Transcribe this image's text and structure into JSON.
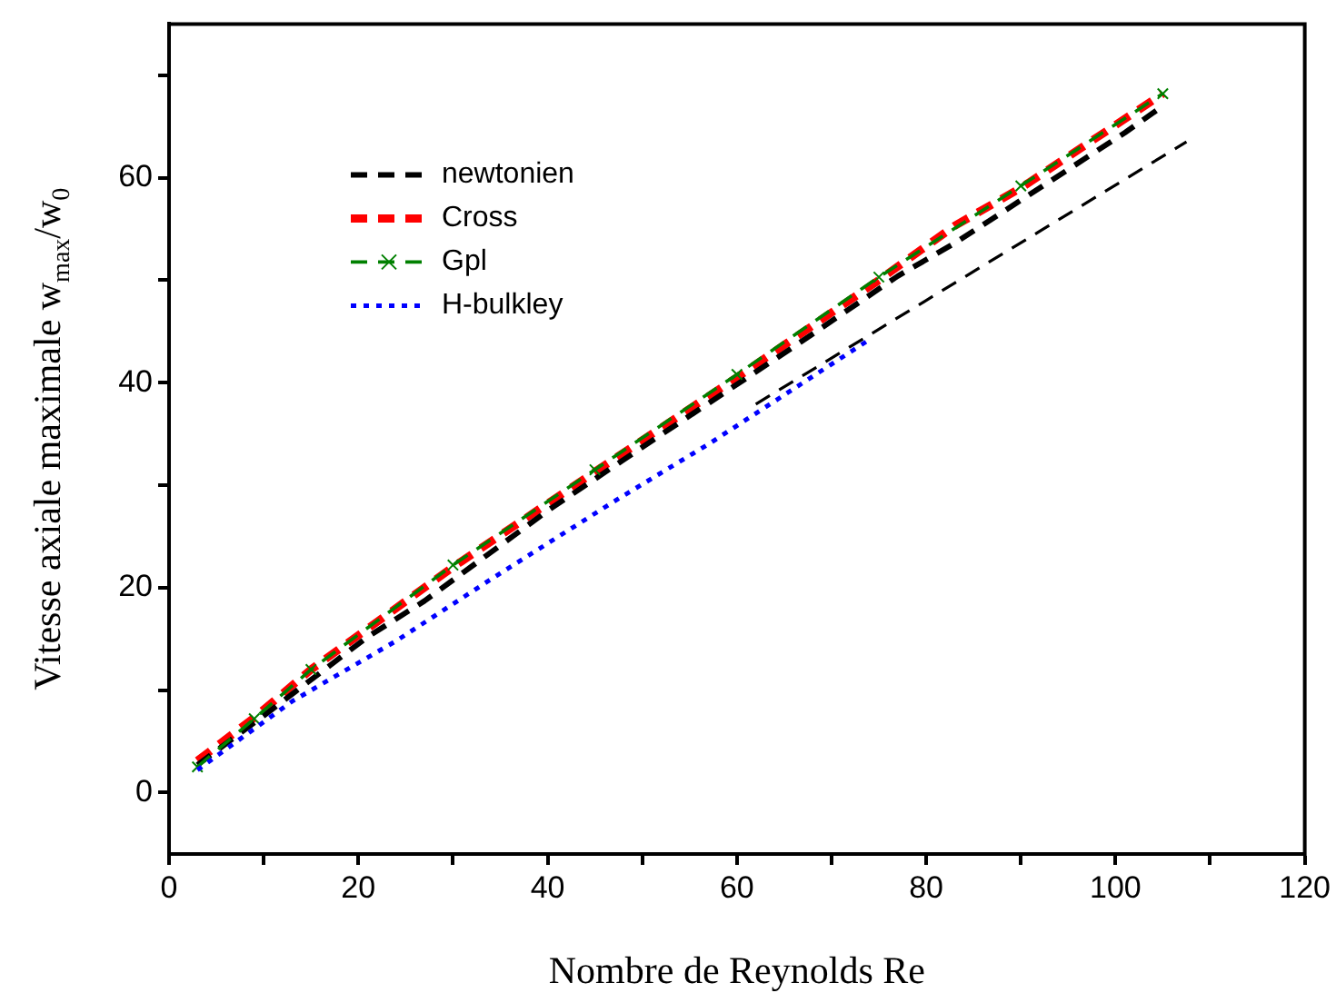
{
  "chart_data": {
    "type": "line",
    "xlabel": "Nombre de Reynolds Re",
    "ylabel": "Vitesse axiale maximale w$_{max}$/w$_{0}$",
    "xlim": [
      0,
      120
    ],
    "ylim": [
      -6,
      75
    ],
    "xticks": [
      0,
      {
        "value": 10,
        "label": null
      },
      20,
      {
        "value": 30,
        "label": null
      },
      40,
      {
        "value": 50,
        "label": null
      },
      60,
      {
        "value": 70,
        "label": null
      },
      80,
      {
        "value": 90,
        "label": null
      },
      100,
      {
        "value": 110,
        "label": null
      },
      120
    ],
    "yticks": [
      0,
      {
        "value": 10,
        "label": null
      },
      20,
      {
        "value": 30,
        "label": null
      },
      40,
      {
        "value": 50,
        "label": null
      },
      60,
      {
        "value": 70,
        "label": null
      }
    ],
    "grid": false,
    "legend": "top left",
    "series": [
      {
        "name": "newtonien",
        "color": "#000000",
        "line_style": "dashed",
        "marker": "none",
        "x": [
          3,
          10,
          21,
          27,
          40,
          50,
          66,
          77,
          83,
          101,
          105
        ],
        "values": [
          2.7,
          7.5,
          15.2,
          18.7,
          27.5,
          33.7,
          43.5,
          50.4,
          53.6,
          64.4,
          67
        ]
      },
      {
        "name": "Cross",
        "color": "#ff0000",
        "line_style": "dashed",
        "marker": "none",
        "x": [
          3,
          9,
          15,
          30,
          45,
          60,
          75,
          83,
          90,
          105
        ],
        "values": [
          3.1,
          7.3,
          12,
          22,
          31.3,
          40.5,
          50,
          55.3,
          59,
          68.2
        ]
      },
      {
        "name": "Gpl",
        "color": "#008000",
        "line_style": "dashed",
        "marker": "cross",
        "x": [
          3,
          9,
          15,
          30,
          45,
          60,
          75,
          90,
          105
        ],
        "values": [
          2.5,
          7.2,
          12,
          22.2,
          31.5,
          40.8,
          50.3,
          59.2,
          68.2
        ]
      },
      {
        "name": "H-bulkley",
        "color": "#0000ff",
        "line_style": "dotted",
        "marker": "none",
        "x": [
          3,
          13,
          24,
          34,
          47,
          57,
          74
        ],
        "values": [
          2.2,
          8.9,
          14.8,
          20.8,
          28.4,
          34,
          44.2
        ]
      },
      {
        "color": "#000000",
        "line_style": "dashed",
        "marker": "none",
        "x": [
          62,
          107.5
        ],
        "values": [
          37.9,
          63.5
        ]
      }
    ]
  }
}
